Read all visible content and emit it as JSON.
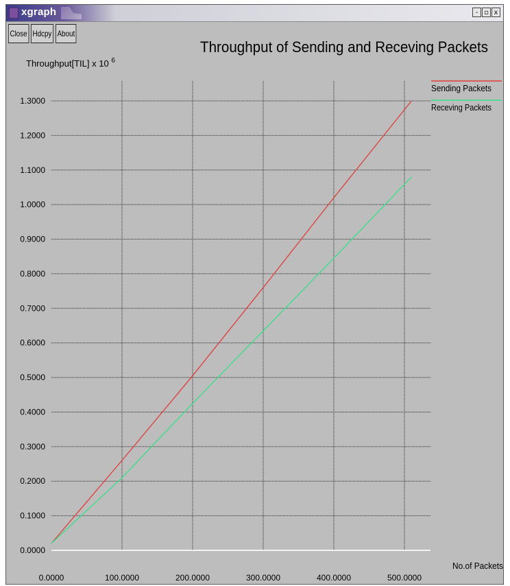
{
  "window": {
    "title": "xgraph",
    "buttons": {
      "minimize": "-",
      "maximize": "▫",
      "close": "x"
    }
  },
  "toolbar": {
    "close_label": "Close",
    "hdcpy_label": "Hdcpy",
    "about_label": "About"
  },
  "chart_data": {
    "type": "line",
    "title": "Throughput of Sending and Receving Packets",
    "ylabel": "Throughput[TIL] x 10",
    "ylabel_exponent": "6",
    "xlabel": "No.of Packets",
    "xlim": [
      0,
      500
    ],
    "ylim": [
      0,
      1.3
    ],
    "x_ticks": [
      "0.0000",
      "100.0000",
      "200.0000",
      "300.0000",
      "400.0000",
      "500.0000"
    ],
    "y_ticks": [
      "0.0000",
      "0.1000",
      "0.2000",
      "0.3000",
      "0.4000",
      "0.5000",
      "0.6000",
      "0.7000",
      "0.8000",
      "0.9000",
      "1.0000",
      "1.1000",
      "1.2000",
      "1.3000"
    ],
    "grid": true,
    "legend_position": "top-right",
    "series": [
      {
        "name": "Sending Packets",
        "color": "#e23b3b",
        "x": [
          0,
          100,
          200,
          300,
          400,
          510
        ],
        "y": [
          0.02,
          0.26,
          0.505,
          0.76,
          1.02,
          1.3
        ]
      },
      {
        "name": "Receving Packets",
        "color": "#33e08a",
        "x": [
          0,
          100,
          200,
          300,
          400,
          510
        ],
        "y": [
          0.02,
          0.21,
          0.425,
          0.635,
          0.845,
          1.08
        ]
      }
    ]
  }
}
